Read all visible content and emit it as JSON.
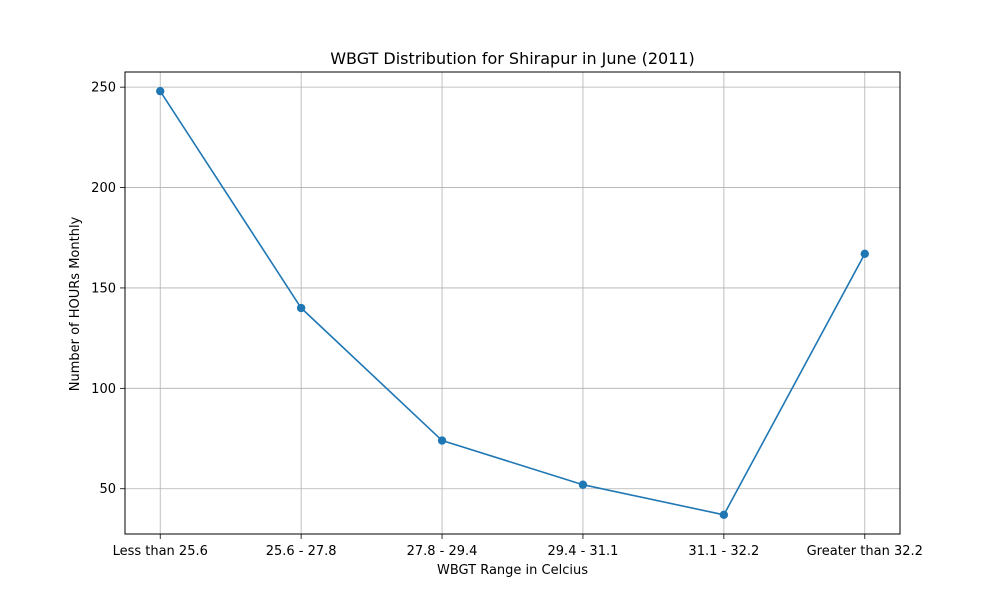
{
  "chart_data": {
    "type": "line",
    "title": "WBGT Distribution for Shirapur in June (2011)",
    "xlabel": "WBGT Range in Celcius",
    "ylabel": "Number of HOURs Monthly",
    "categories": [
      "Less than 25.6",
      "25.6 - 27.8",
      "27.8 - 29.4",
      "29.4 - 31.1",
      "31.1 - 32.2",
      "Greater than 32.2"
    ],
    "series": [
      {
        "values": [
          248,
          140,
          74,
          52,
          37,
          167
        ],
        "color": "#1f77b4",
        "marker": "circle"
      }
    ],
    "ylim": [
      27.45,
      257.55
    ],
    "yticks": [
      50,
      100,
      150,
      200,
      250
    ],
    "grid": true,
    "legend": "none"
  }
}
